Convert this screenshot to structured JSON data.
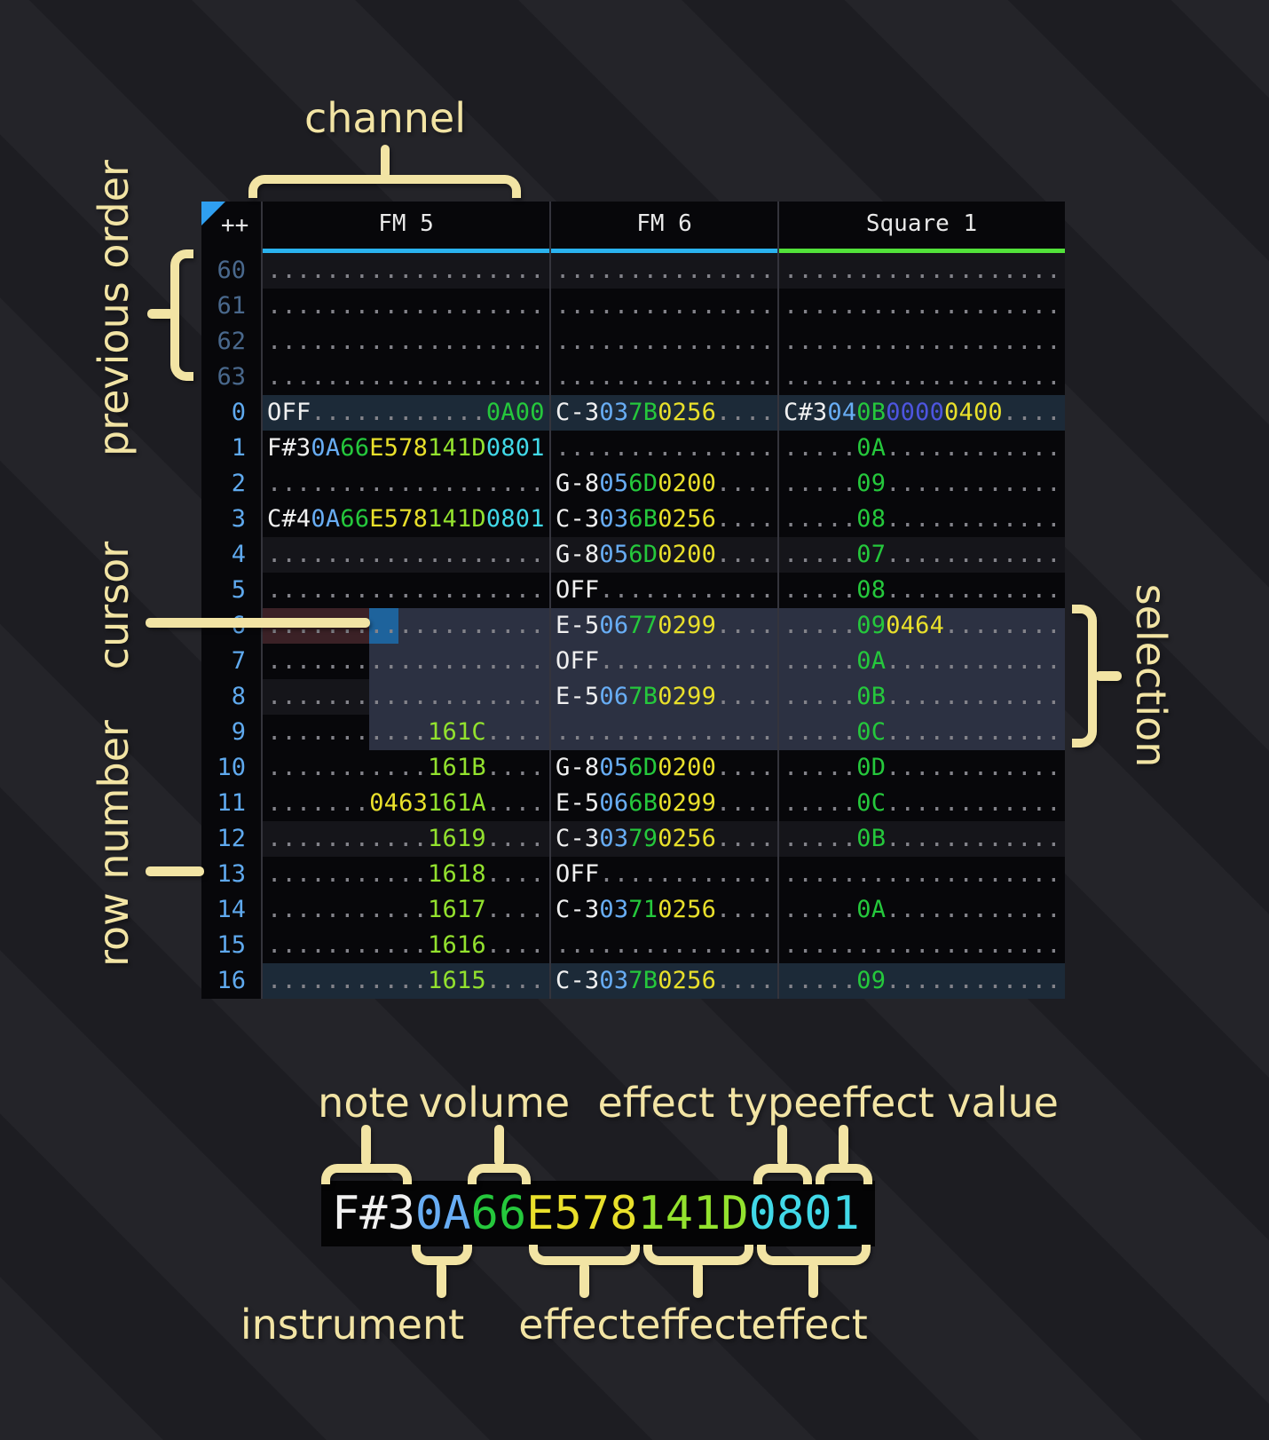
{
  "colors": {
    "table_bg": "#07070a",
    "accent_label": "#f2e4a4",
    "note": "#f0f0f0",
    "instrument": "#68adf4",
    "volume": "#25c83c",
    "effect_yellow": "#e9e02b",
    "effect_green": "#93e22e",
    "effect_cyan": "#41d9e8",
    "effect_blue": "#4d55e0",
    "dots": "#83838a",
    "row_number": "#5fa9ee",
    "row_number_dim": "#49688c",
    "cursor": "#1e639c",
    "cursor_row": "#3b2126",
    "selection": "#2c3142",
    "row_highlight": "#15151a",
    "order_highlight": "#1c2a38",
    "triangle": "#2f9ff0",
    "separator": "#34343c"
  },
  "annotations": {
    "channel": "channel",
    "previous_order": "previous order",
    "cursor": "cursor",
    "row_number": "row number",
    "selection": "selection",
    "note": "note",
    "volume": "volume",
    "effect_type": "effect type",
    "effect_value": "effect value",
    "instrument": "instrument",
    "effect_a": "effect",
    "effect_b": "effect",
    "effect_c": "effect"
  },
  "tracker": {
    "corner_label": "++",
    "channels": [
      {
        "name": "FM 5",
        "underline": "#2ab3ef"
      },
      {
        "name": "FM 6",
        "underline": "#2ab3ef"
      },
      {
        "name": "Square 1",
        "underline": "#52e23a"
      }
    ],
    "rows": [
      {
        "num": "60",
        "dim": true,
        "hl": "four",
        "cells": [
          [
            [
              "...................",
              "d"
            ]
          ],
          [
            [
              "...............",
              "d"
            ]
          ],
          [
            [
              "...................",
              "d"
            ]
          ]
        ]
      },
      {
        "num": "61",
        "dim": true,
        "hl": "",
        "cells": [
          [
            [
              "...................",
              "d"
            ]
          ],
          [
            [
              "...............",
              "d"
            ]
          ],
          [
            [
              "...................",
              "d"
            ]
          ]
        ]
      },
      {
        "num": "62",
        "dim": true,
        "hl": "",
        "cells": [
          [
            [
              "...................",
              "d"
            ]
          ],
          [
            [
              "...............",
              "d"
            ]
          ],
          [
            [
              "...................",
              "d"
            ]
          ]
        ]
      },
      {
        "num": "63",
        "dim": true,
        "hl": "",
        "cells": [
          [
            [
              "...................",
              "d"
            ]
          ],
          [
            [
              "...............",
              "d"
            ]
          ],
          [
            [
              "...................",
              "d"
            ]
          ]
        ]
      },
      {
        "num": "0",
        "dim": false,
        "hl": "order",
        "cells": [
          [
            [
              "OFF",
              "n"
            ],
            [
              "............",
              "d"
            ],
            [
              "0A00",
              "v"
            ]
          ],
          [
            [
              "C-3",
              "n"
            ],
            [
              "03",
              "i"
            ],
            [
              "7B",
              "v"
            ],
            [
              "0256",
              "y"
            ],
            [
              "....",
              "d"
            ]
          ],
          [
            [
              "C#3",
              "n"
            ],
            [
              "04",
              "i"
            ],
            [
              "0B",
              "v"
            ],
            [
              "0000",
              "b"
            ],
            [
              "0400",
              "y"
            ],
            [
              "....",
              "d"
            ]
          ]
        ]
      },
      {
        "num": "1",
        "dim": false,
        "hl": "",
        "cells": [
          [
            [
              "F#3",
              "n"
            ],
            [
              "0A",
              "i"
            ],
            [
              "66",
              "v"
            ],
            [
              "E578",
              "y"
            ],
            [
              "141D",
              "g"
            ],
            [
              "0801",
              "c"
            ]
          ],
          [
            [
              "...............",
              "d"
            ]
          ],
          [
            [
              ".....",
              "d"
            ],
            [
              "0A",
              "v"
            ],
            [
              "............",
              "d"
            ]
          ]
        ]
      },
      {
        "num": "2",
        "dim": false,
        "hl": "",
        "cells": [
          [
            [
              "...................",
              "d"
            ]
          ],
          [
            [
              "G-8",
              "n"
            ],
            [
              "05",
              "i"
            ],
            [
              "6D",
              "v"
            ],
            [
              "0200",
              "y"
            ],
            [
              "....",
              "d"
            ]
          ],
          [
            [
              ".....",
              "d"
            ],
            [
              "09",
              "v"
            ],
            [
              "............",
              "d"
            ]
          ]
        ]
      },
      {
        "num": "3",
        "dim": false,
        "hl": "",
        "cells": [
          [
            [
              "C#4",
              "n"
            ],
            [
              "0A",
              "i"
            ],
            [
              "66",
              "v"
            ],
            [
              "E578",
              "y"
            ],
            [
              "141D",
              "g"
            ],
            [
              "0801",
              "c"
            ]
          ],
          [
            [
              "C-3",
              "n"
            ],
            [
              "03",
              "i"
            ],
            [
              "6B",
              "v"
            ],
            [
              "0256",
              "y"
            ],
            [
              "....",
              "d"
            ]
          ],
          [
            [
              ".....",
              "d"
            ],
            [
              "08",
              "v"
            ],
            [
              "............",
              "d"
            ]
          ]
        ]
      },
      {
        "num": "4",
        "dim": false,
        "hl": "four",
        "cells": [
          [
            [
              "...................",
              "d"
            ]
          ],
          [
            [
              "G-8",
              "n"
            ],
            [
              "05",
              "i"
            ],
            [
              "6D",
              "v"
            ],
            [
              "0200",
              "y"
            ],
            [
              "....",
              "d"
            ]
          ],
          [
            [
              ".....",
              "d"
            ],
            [
              "07",
              "v"
            ],
            [
              "............",
              "d"
            ]
          ]
        ]
      },
      {
        "num": "5",
        "dim": false,
        "hl": "",
        "cells": [
          [
            [
              "...................",
              "d"
            ]
          ],
          [
            [
              "OFF",
              "n"
            ],
            [
              "............",
              "d"
            ]
          ],
          [
            [
              ".....",
              "d"
            ],
            [
              "08",
              "v"
            ],
            [
              "............",
              "d"
            ]
          ]
        ]
      },
      {
        "num": "6",
        "dim": false,
        "hl": "",
        "cells": [
          [
            [
              "...................",
              "d"
            ]
          ],
          [
            [
              "E-5",
              "n"
            ],
            [
              "06",
              "i"
            ],
            [
              "77",
              "v"
            ],
            [
              "0299",
              "y"
            ],
            [
              "....",
              "d"
            ]
          ],
          [
            [
              ".....",
              "d"
            ],
            [
              "09",
              "v"
            ],
            [
              "0464",
              "y"
            ],
            [
              "........",
              "d"
            ]
          ]
        ]
      },
      {
        "num": "7",
        "dim": false,
        "hl": "",
        "cells": [
          [
            [
              "...................",
              "d"
            ]
          ],
          [
            [
              "OFF",
              "n"
            ],
            [
              "............",
              "d"
            ]
          ],
          [
            [
              ".....",
              "d"
            ],
            [
              "0A",
              "v"
            ],
            [
              "............",
              "d"
            ]
          ]
        ]
      },
      {
        "num": "8",
        "dim": false,
        "hl": "four",
        "cells": [
          [
            [
              "...................",
              "d"
            ]
          ],
          [
            [
              "E-5",
              "n"
            ],
            [
              "06",
              "i"
            ],
            [
              "7B",
              "v"
            ],
            [
              "0299",
              "y"
            ],
            [
              "....",
              "d"
            ]
          ],
          [
            [
              ".....",
              "d"
            ],
            [
              "0B",
              "v"
            ],
            [
              "............",
              "d"
            ]
          ]
        ]
      },
      {
        "num": "9",
        "dim": false,
        "hl": "",
        "cells": [
          [
            [
              "...........",
              "d"
            ],
            [
              "161C",
              "g"
            ],
            [
              "....",
              "d"
            ]
          ],
          [
            [
              "...............",
              "d"
            ]
          ],
          [
            [
              ".....",
              "d"
            ],
            [
              "0C",
              "v"
            ],
            [
              "............",
              "d"
            ]
          ]
        ]
      },
      {
        "num": "10",
        "dim": false,
        "hl": "",
        "cells": [
          [
            [
              "...........",
              "d"
            ],
            [
              "161B",
              "g"
            ],
            [
              "....",
              "d"
            ]
          ],
          [
            [
              "G-8",
              "n"
            ],
            [
              "05",
              "i"
            ],
            [
              "6D",
              "v"
            ],
            [
              "0200",
              "y"
            ],
            [
              "....",
              "d"
            ]
          ],
          [
            [
              ".....",
              "d"
            ],
            [
              "0D",
              "v"
            ],
            [
              "............",
              "d"
            ]
          ]
        ]
      },
      {
        "num": "11",
        "dim": false,
        "hl": "",
        "cells": [
          [
            [
              ".......",
              "d"
            ],
            [
              "0463",
              "y"
            ],
            [
              "161A",
              "g"
            ],
            [
              "....",
              "d"
            ]
          ],
          [
            [
              "E-5",
              "n"
            ],
            [
              "06",
              "i"
            ],
            [
              "6B",
              "v"
            ],
            [
              "0299",
              "y"
            ],
            [
              "....",
              "d"
            ]
          ],
          [
            [
              ".....",
              "d"
            ],
            [
              "0C",
              "v"
            ],
            [
              "............",
              "d"
            ]
          ]
        ]
      },
      {
        "num": "12",
        "dim": false,
        "hl": "four",
        "cells": [
          [
            [
              "...........",
              "d"
            ],
            [
              "1619",
              "g"
            ],
            [
              "....",
              "d"
            ]
          ],
          [
            [
              "C-3",
              "n"
            ],
            [
              "03",
              "i"
            ],
            [
              "79",
              "v"
            ],
            [
              "0256",
              "y"
            ],
            [
              "....",
              "d"
            ]
          ],
          [
            [
              ".....",
              "d"
            ],
            [
              "0B",
              "v"
            ],
            [
              "............",
              "d"
            ]
          ]
        ]
      },
      {
        "num": "13",
        "dim": false,
        "hl": "",
        "cells": [
          [
            [
              "...........",
              "d"
            ],
            [
              "1618",
              "g"
            ],
            [
              "....",
              "d"
            ]
          ],
          [
            [
              "OFF",
              "n"
            ],
            [
              "............",
              "d"
            ]
          ],
          [
            [
              "...................",
              "d"
            ]
          ]
        ]
      },
      {
        "num": "14",
        "dim": false,
        "hl": "",
        "cells": [
          [
            [
              "...........",
              "d"
            ],
            [
              "1617",
              "g"
            ],
            [
              "....",
              "d"
            ]
          ],
          [
            [
              "C-3",
              "n"
            ],
            [
              "03",
              "i"
            ],
            [
              "71",
              "v"
            ],
            [
              "0256",
              "y"
            ],
            [
              "....",
              "d"
            ]
          ],
          [
            [
              ".....",
              "d"
            ],
            [
              "0A",
              "v"
            ],
            [
              "............",
              "d"
            ]
          ]
        ]
      },
      {
        "num": "15",
        "dim": false,
        "hl": "",
        "cells": [
          [
            [
              "...........",
              "d"
            ],
            [
              "1616",
              "g"
            ],
            [
              "....",
              "d"
            ]
          ],
          [
            [
              "...............",
              "d"
            ]
          ],
          [
            [
              "...................",
              "d"
            ]
          ]
        ]
      },
      {
        "num": "16",
        "dim": false,
        "hl": "order",
        "cells": [
          [
            [
              "...........",
              "d"
            ],
            [
              "1615",
              "g"
            ],
            [
              "....",
              "d"
            ]
          ],
          [
            [
              "C-3",
              "n"
            ],
            [
              "03",
              "i"
            ],
            [
              "7B",
              "v"
            ],
            [
              "0256",
              "y"
            ],
            [
              "....",
              "d"
            ]
          ],
          [
            [
              ".....",
              "d"
            ],
            [
              "09",
              "v"
            ],
            [
              "............",
              "d"
            ]
          ]
        ]
      }
    ]
  },
  "legend": {
    "segments": [
      {
        "t": "F#3",
        "c": "n",
        "part": "note"
      },
      {
        "t": "0A",
        "c": "i",
        "part": "instrument"
      },
      {
        "t": "66",
        "c": "v",
        "part": "volume"
      },
      {
        "t": "E578",
        "c": "y",
        "part": "effect"
      },
      {
        "t": "141D",
        "c": "g",
        "part": "effect"
      },
      {
        "t": "0801",
        "c": "c",
        "part": "effect type + effect value"
      }
    ]
  }
}
